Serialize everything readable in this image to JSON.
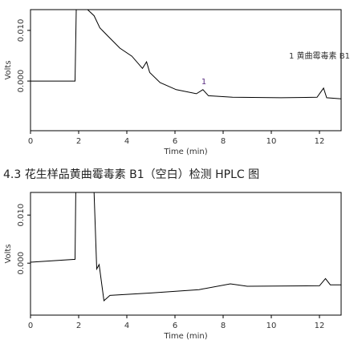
{
  "chart_data": [
    {
      "type": "line",
      "x_label": "Time (min)",
      "y_label": "Volts",
      "annotation": "1 黄曲霉毒素 B1",
      "peaks": [
        {
          "label": "1",
          "x": 7.2,
          "y": -0.0017
        }
      ],
      "xlim": [
        0,
        12.9
      ],
      "ylim": [
        -0.0098,
        0.0141
      ],
      "xticks": [
        0,
        2,
        4,
        6,
        8,
        10,
        12
      ],
      "yticks": [
        {
          "value": 0,
          "label": "0.000"
        },
        {
          "value": 0.01,
          "label": "0.010"
        }
      ],
      "series": [
        {
          "color": "#000000",
          "x": [
            0,
            1.85,
            1.9,
            2.37,
            2.64,
            2.88,
            3.21,
            3.71,
            4.21,
            4.65,
            4.82,
            4.95,
            5.38,
            6.05,
            6.89,
            7.16,
            7.39,
            8.39,
            10.4,
            11.9,
            12.17,
            12.3,
            12.9
          ],
          "values": [
            0,
            0,
            0.0141,
            0.0141,
            0.0129,
            0.0105,
            0.0089,
            0.0065,
            0.0049,
            0.0025,
            0.0038,
            0.0017,
            -0.0003,
            -0.0017,
            -0.0025,
            -0.0017,
            -0.0029,
            -0.0032,
            -0.0033,
            -0.0032,
            -0.0014,
            -0.0033,
            -0.0035
          ]
        }
      ]
    },
    {
      "type": "line",
      "title": "4.3 花生样品黄曲霉毒素 B1（空白）检测 HPLC 图",
      "x_label": "Time (min)",
      "y_label": "Volts",
      "xlim": [
        0,
        12.9
      ],
      "ylim": [
        -0.0108,
        0.0147
      ],
      "xticks": [
        0,
        2,
        4,
        6,
        8,
        10,
        12
      ],
      "yticks": [
        {
          "value": 0,
          "label": "0.000"
        },
        {
          "value": 0.01,
          "label": "0.010"
        }
      ],
      "series": [
        {
          "color": "#000000",
          "x": [
            0,
            1.85,
            1.88,
            2.64,
            2.75,
            2.85,
            3.05,
            3.3,
            5,
            7,
            8.3,
            9,
            12,
            12.25,
            12.45,
            12.9
          ],
          "values": [
            0.0002,
            0.0008,
            0.0147,
            0.0147,
            -0.0012,
            -0.0003,
            -0.0078,
            -0.0067,
            -0.0062,
            -0.0055,
            -0.0043,
            -0.0048,
            -0.0047,
            -0.0032,
            -0.0045,
            -0.0045
          ]
        }
      ]
    }
  ]
}
